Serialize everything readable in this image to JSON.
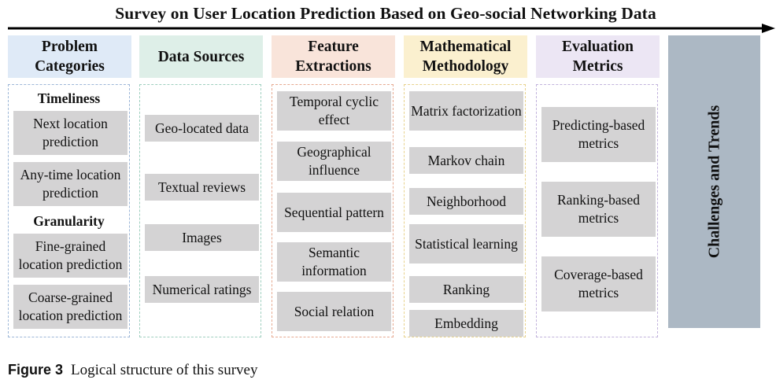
{
  "title": "Survey on User Location Prediction Based on Geo-social Networking Data",
  "columns": [
    {
      "heading": "Problem Categories",
      "header_color": "#dfeaf7",
      "border_color": "#9db7d8",
      "groups": [
        {
          "label": "Timeliness",
          "items": [
            "Next location prediction",
            "Any-time location prediction"
          ]
        },
        {
          "label": "Granularity",
          "items": [
            "Fine-grained location prediction",
            "Coarse-grained location prediction"
          ]
        }
      ]
    },
    {
      "heading": "Data Sources",
      "header_color": "#deefe8",
      "border_color": "#9fcfbf",
      "items": [
        "Geo-located data",
        "Textual reviews",
        "Images",
        "Numerical ratings"
      ]
    },
    {
      "heading": "Feature Extractions",
      "header_color": "#f9e4da",
      "border_color": "#e6a990",
      "items": [
        "Temporal cyclic effect",
        "Geographical influence",
        "Sequential pattern",
        "Semantic information",
        "Social relation"
      ]
    },
    {
      "heading": "Mathematical Methodology",
      "header_color": "#fbf0cf",
      "border_color": "#e8d28c",
      "items": [
        "Matrix factorization",
        "Markov chain",
        "Neighborhood",
        "Statistical learning",
        "Ranking",
        "Embedding"
      ]
    },
    {
      "heading": "Evaluation Metrics",
      "header_color": "#ece6f4",
      "border_color": "#c2b3dc",
      "items": [
        "Predicting-based metrics",
        "Ranking-based metrics",
        "Coverage-based metrics"
      ]
    }
  ],
  "challenges": "Challenges and Trends",
  "challenges_color": "#acb8c4",
  "caption": {
    "figure": "Figure 3",
    "text": "Logical structure of this survey"
  }
}
